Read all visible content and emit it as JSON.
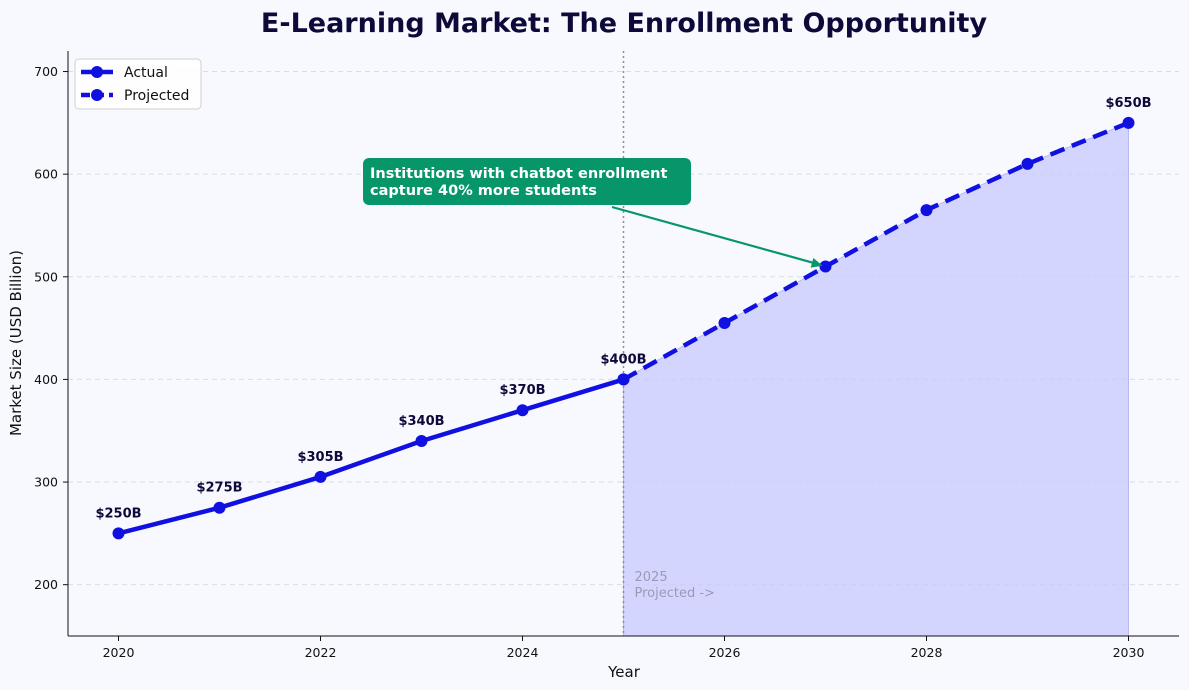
{
  "chart_data": {
    "type": "line",
    "title": "E-Learning Market: The Enrollment Opportunity",
    "xlabel": "Year",
    "ylabel": "Market Size (USD Billion)",
    "xlim": [
      2019.5,
      2030.5
    ],
    "ylim": [
      150,
      720
    ],
    "x_ticks": [
      2020,
      2022,
      2024,
      2026,
      2028,
      2030
    ],
    "y_ticks": [
      200,
      300,
      400,
      500,
      600,
      700
    ],
    "grid": "horizontal dashed",
    "legend_position": "top-left",
    "series": [
      {
        "name": "Actual",
        "style": "solid",
        "color": "#1010e0",
        "x": [
          2020,
          2021,
          2022,
          2023,
          2024,
          2025
        ],
        "values": [
          250,
          275,
          305,
          340,
          370,
          400
        ]
      },
      {
        "name": "Projected",
        "style": "dashed",
        "color": "#1010e0",
        "x": [
          2025,
          2026,
          2027,
          2028,
          2029,
          2030
        ],
        "values": [
          400,
          455,
          510,
          565,
          610,
          650
        ]
      }
    ],
    "data_labels": [
      {
        "x": 2020,
        "y": 250,
        "text": "$250B"
      },
      {
        "x": 2021,
        "y": 275,
        "text": "$275B"
      },
      {
        "x": 2022,
        "y": 305,
        "text": "$305B"
      },
      {
        "x": 2023,
        "y": 340,
        "text": "$340B"
      },
      {
        "x": 2024,
        "y": 370,
        "text": "$370B"
      },
      {
        "x": 2025,
        "y": 400,
        "text": "$400B"
      },
      {
        "x": 2030,
        "y": 650,
        "text": "$650B"
      }
    ],
    "divider": {
      "x": 2025,
      "lines": [
        "2025",
        "Projected ->"
      ]
    },
    "annotation": {
      "lines": [
        "Institutions with chatbot enrollment",
        "capture 40% more students"
      ],
      "target_x": 2027,
      "target_y": 510,
      "color": "#07966a"
    },
    "fill_color": "#c8c8ff"
  }
}
